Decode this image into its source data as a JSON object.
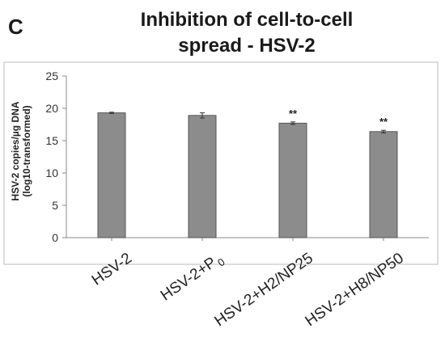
{
  "panel_label": "C",
  "title_lines": [
    "Inhibition of cell-to-cell",
    "spread - HSV-2"
  ],
  "ylabel_lines": [
    "HSV-2 copies/µg DNA",
    "(log10-transformed)"
  ],
  "colors": {
    "bar": "#8c8c8c",
    "bar_stroke": "#555555",
    "axis": "#888888",
    "frame": "#bbbbbb"
  },
  "chart_data": {
    "type": "bar",
    "categories": [
      "HSV-2",
      "HSV-2+P0",
      "HSV-2+H2/NP25",
      "HSV-2+H8/NP50"
    ],
    "category_labels": [
      {
        "main": "HSV-2",
        "sub": ""
      },
      {
        "main": "HSV-2+P",
        "sub": "0"
      },
      {
        "main": "HSV-2+H2/NP25",
        "sub": ""
      },
      {
        "main": "HSV-2+H8/NP50",
        "sub": ""
      }
    ],
    "values": [
      19.3,
      18.9,
      17.7,
      16.4
    ],
    "errors": [
      0.1,
      0.4,
      0.2,
      0.2
    ],
    "significance": [
      "",
      "",
      "**",
      "**"
    ],
    "ylim": [
      0,
      25
    ],
    "yticks": [
      0,
      5,
      10,
      15,
      20,
      25
    ],
    "grid": false
  }
}
